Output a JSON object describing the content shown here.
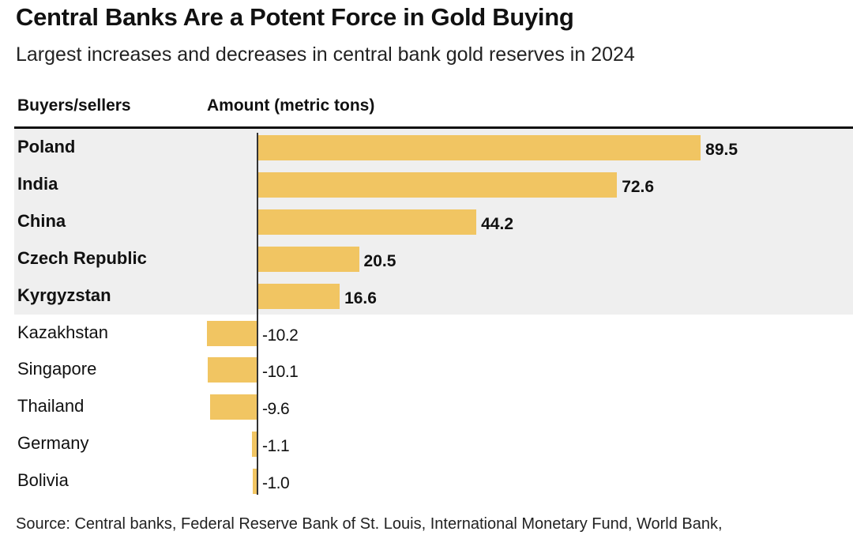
{
  "chart_data": {
    "type": "bar",
    "title": "Central Banks Are a Potent Force in Gold Buying",
    "subtitle": "Largest increases and decreases in central bank gold reserves in 2024",
    "column_headers": [
      "Buyers/sellers",
      "Amount (metric tons)"
    ],
    "categories": [
      "Poland",
      "India",
      "China",
      "Czech Republic",
      "Kyrgyzstan",
      "Kazakhstan",
      "Singapore",
      "Thailand",
      "Germany",
      "Bolivia"
    ],
    "values": [
      89.5,
      72.6,
      44.2,
      20.5,
      16.6,
      -10.2,
      -10.1,
      -9.6,
      -1.1,
      -1.0
    ],
    "value_labels": [
      "89.5",
      "72.6",
      "44.2",
      "20.5",
      "16.6",
      "-10.2",
      "-10.1",
      "-9.6",
      "-1.1",
      "-1.0"
    ],
    "xlim": [
      -10.2,
      89.5
    ],
    "orientation": "horizontal",
    "bar_color": "#f1c562",
    "highlight_color": "#efefef",
    "source": "Source: Central banks, Federal Reserve Bank of St. Louis, International Monetary Fund, World Bank,"
  }
}
